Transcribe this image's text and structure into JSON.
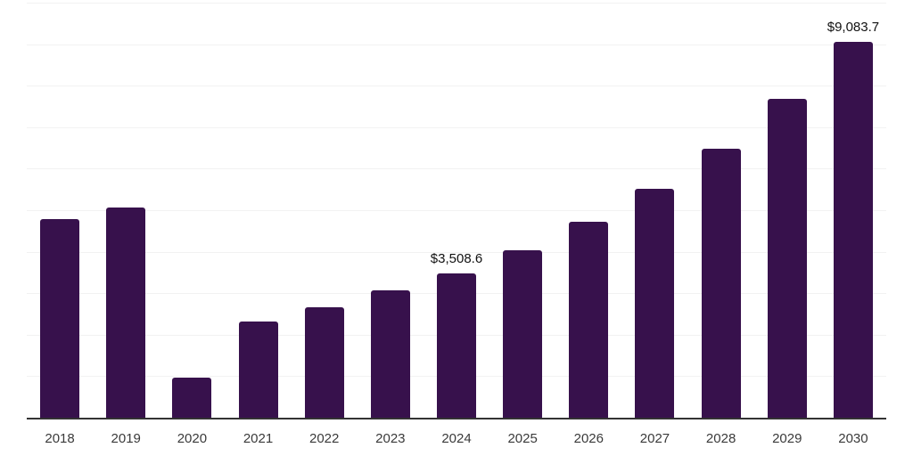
{
  "chart_data": {
    "type": "bar",
    "title": "",
    "xlabel": "",
    "ylabel": "",
    "categories": [
      "2018",
      "2019",
      "2020",
      "2021",
      "2022",
      "2023",
      "2024",
      "2025",
      "2026",
      "2027",
      "2028",
      "2029",
      "2030"
    ],
    "values": [
      4810,
      5090,
      990,
      2345,
      2680,
      3090,
      3508.6,
      4060,
      4735,
      5545,
      6505,
      7710,
      9083.7
    ],
    "data_labels": [
      {
        "category": "2024",
        "text": "$3,508.6"
      },
      {
        "category": "2030",
        "text": "$9,083.7"
      }
    ],
    "ylim": [
      0,
      10000
    ],
    "gridline_interval": 1000,
    "grid": true,
    "legend": false,
    "colors": {
      "bar": "#37114C",
      "gridline": "#f2f2f2",
      "axis_line": "#333333",
      "tick_label": "#3a3a3a",
      "value_label": "#111111",
      "background": "#ffffff"
    }
  }
}
